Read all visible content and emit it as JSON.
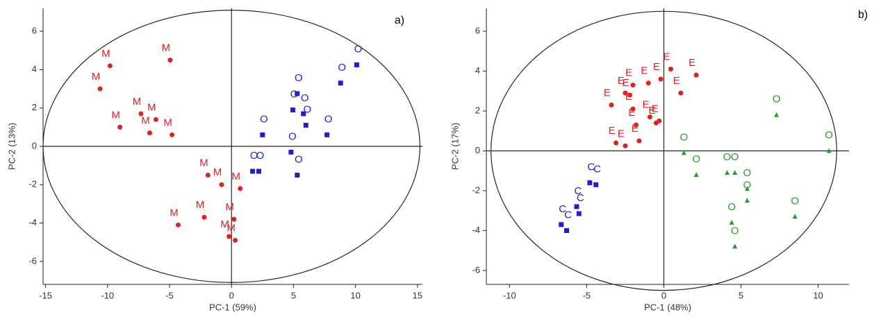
{
  "chart_data": [
    {
      "type": "scatter",
      "panel": "a)",
      "xlabel": "PC-1 (59%)",
      "ylabel": "PC-2 (13%)",
      "xlim": [
        -15.2,
        15.4
      ],
      "ylim": [
        -7.2,
        7.2
      ],
      "xticks": [
        -15,
        -10,
        -5,
        0,
        5,
        10,
        15
      ],
      "yticks": [
        -6,
        -4,
        -2,
        0,
        2,
        4,
        6
      ],
      "ellipse_radii": [
        15.2,
        7.1
      ],
      "series": [
        {
          "label": "M",
          "color": "#e0201f",
          "marker": "circle",
          "x": [
            -9.8,
            -10.6,
            -9.0,
            -4.95,
            -7.3,
            -6.1,
            -6.6,
            -4.8,
            -1.9,
            -0.8,
            0.7,
            -4.3,
            -2.2,
            0.2,
            -0.2,
            0.3
          ],
          "y": [
            4.2,
            3.0,
            1.0,
            4.5,
            1.7,
            1.4,
            0.7,
            0.6,
            -1.5,
            -2.0,
            -2.2,
            -4.1,
            -3.7,
            -3.8,
            -4.7,
            -4.9
          ]
        },
        {
          "label": "O",
          "color": "#1f1fd0",
          "marker": "square",
          "x": [
            10.1,
            8.8,
            2.5,
            5.3,
            4.95,
            5.8,
            6.0,
            7.7,
            4.8,
            1.7,
            2.2,
            5.3
          ],
          "y": [
            4.25,
            3.3,
            0.6,
            2.75,
            1.9,
            1.7,
            1.1,
            0.6,
            -0.3,
            -1.3,
            -1.3,
            -1.5
          ]
        }
      ]
    },
    {
      "type": "scatter",
      "panel": "b)",
      "xlabel": "PC-1 (48%)",
      "ylabel": "PC-2 (17%)",
      "xlim": [
        -11.5,
        12
      ],
      "ylim": [
        -6.7,
        7.15
      ],
      "xticks": [
        -10,
        -5,
        0,
        5,
        10
      ],
      "yticks": [
        -6,
        -4,
        -2,
        0,
        2,
        4,
        6
      ],
      "ellipse_radii": [
        11.2,
        7.0
      ],
      "series": [
        {
          "label": "E",
          "color": "#e0201f",
          "marker": "circle",
          "x": [
            -3.4,
            -2.5,
            -2.2,
            -2.0,
            -1.0,
            -0.2,
            0.45,
            2.1,
            1.1,
            -2.0,
            -1.8,
            -0.9,
            -0.5,
            -0.3,
            -3.1,
            -2.5,
            -1.6
          ],
          "y": [
            2.3,
            2.9,
            2.8,
            3.3,
            3.4,
            3.6,
            4.1,
            3.8,
            2.9,
            2.1,
            1.3,
            1.7,
            1.4,
            1.5,
            0.4,
            0.25,
            0.5
          ]
        },
        {
          "label": "C",
          "color": "#1f1fd0",
          "marker": "square",
          "x": [
            -4.8,
            -4.4,
            -5.65,
            -5.5,
            -6.65,
            -6.3
          ],
          "y": [
            -1.6,
            -1.7,
            -2.8,
            -3.15,
            -3.7,
            -4.0
          ]
        },
        {
          "label": "O",
          "color": "#2a9a2a",
          "marker": "triangle",
          "x": [
            7.3,
            10.7,
            1.3,
            2.1,
            4.1,
            4.6,
            5.4,
            5.4,
            4.4,
            4.6,
            8.5
          ],
          "y": [
            1.8,
            0.0,
            -0.1,
            -1.2,
            -1.1,
            -1.1,
            -1.9,
            -2.5,
            -3.6,
            -4.8,
            -3.3
          ]
        }
      ]
    }
  ]
}
